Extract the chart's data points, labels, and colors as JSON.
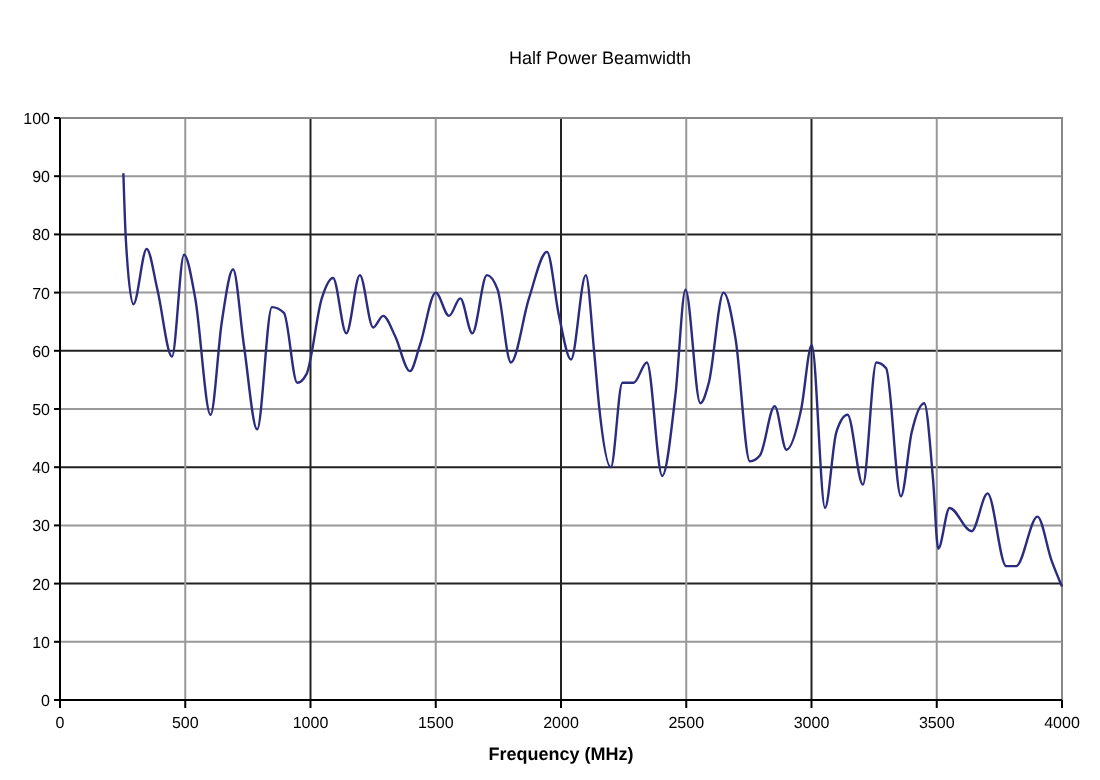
{
  "chart_data": {
    "type": "line",
    "title": "Half Power Beamwidth",
    "xlabel": "Frequency (MHz)",
    "xlim": [
      0,
      4000
    ],
    "xticks": [
      0,
      500,
      1000,
      1500,
      2000,
      2500,
      3000,
      3500,
      4000
    ],
    "ylim": [
      0,
      100
    ],
    "yticks": [
      0,
      10,
      20,
      30,
      40,
      50,
      60,
      70,
      80,
      90,
      100
    ],
    "grid": true,
    "marker": "none",
    "line_style": "solid",
    "series": [
      {
        "color": "#2b2b80",
        "x": [
          253,
          263,
          293,
          346,
          389,
          447,
          495,
          540,
          601,
          646,
          691,
          734,
          787,
          846,
          894,
          947,
          984,
          1045,
          1090,
          1143,
          1197,
          1250,
          1290,
          1338,
          1397,
          1437,
          1500,
          1553,
          1598,
          1646,
          1704,
          1747,
          1800,
          1872,
          1944,
          1992,
          2040,
          2099,
          2133,
          2152,
          2199,
          2245,
          2290,
          2343,
          2404,
          2457,
          2497,
          2556,
          2590,
          2649,
          2697,
          2754,
          2794,
          2853,
          2900,
          2959,
          3001,
          3054,
          3099,
          3144,
          3205,
          3259,
          3298,
          3357,
          3400,
          3450,
          3485,
          3506,
          3551,
          3639,
          3703,
          3777,
          3817,
          3902,
          3958,
          4000
        ],
        "values": [
          90.5,
          79,
          68,
          77.5,
          70.5,
          59,
          76.5,
          69,
          49,
          65,
          74,
          61,
          46.5,
          67.5,
          66.5,
          54.5,
          56,
          69,
          72.5,
          63,
          73,
          64,
          66,
          62.5,
          56.5,
          61,
          70,
          66,
          69,
          63,
          73,
          70.5,
          58,
          69,
          77,
          66,
          58.5,
          73,
          59.5,
          50.5,
          40,
          54.5,
          54.5,
          58,
          38.5,
          52.5,
          70.5,
          51,
          54.5,
          70,
          62,
          41,
          42,
          50.5,
          43,
          50,
          61,
          33,
          46,
          49,
          37,
          58,
          57,
          35,
          46,
          51,
          38,
          26,
          33,
          29,
          35.5,
          23,
          23,
          31.5,
          24,
          19.5
        ]
      }
    ]
  }
}
